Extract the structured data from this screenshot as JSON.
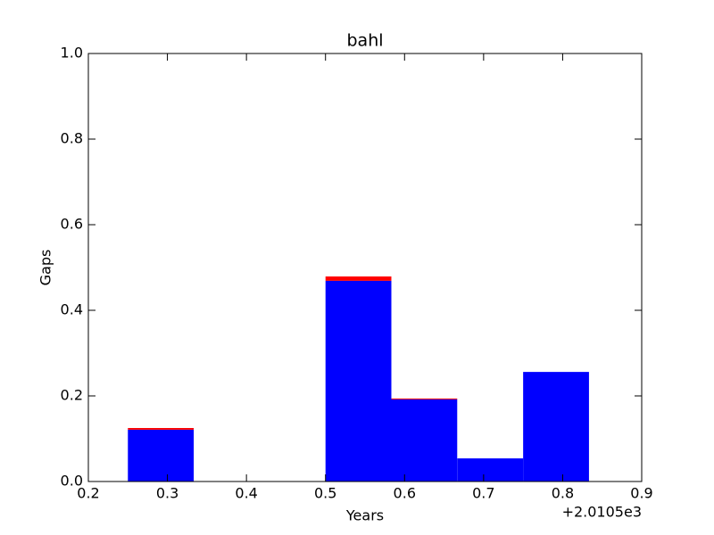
{
  "chart_data": {
    "type": "stacked_bar",
    "title": "bahl",
    "xlabel": "Years",
    "ylabel": "Gaps",
    "x_offset_label": "+2.0105e3",
    "x": [
      0.25,
      0.5,
      0.5833,
      0.6667,
      0.75
    ],
    "bar_width": 0.0833,
    "series": [
      {
        "color": "#0000ff",
        "values": [
          0.121,
          0.469,
          0.192,
          0.054,
          0.256
        ]
      },
      {
        "color": "#ff0000",
        "values": [
          0.004,
          0.01,
          0.002,
          0,
          0
        ]
      }
    ],
    "xlim": [
      0.2,
      0.9
    ],
    "xticks": [
      0.2,
      0.3,
      0.4,
      0.5,
      0.6,
      0.7,
      0.8,
      0.9
    ],
    "ylim": [
      0,
      1
    ],
    "yticks": [
      {
        "value": 0,
        "label": "0.0"
      },
      0.2,
      0.4,
      0.6,
      0.8,
      {
        "value": 1,
        "label": "1.0"
      }
    ]
  }
}
